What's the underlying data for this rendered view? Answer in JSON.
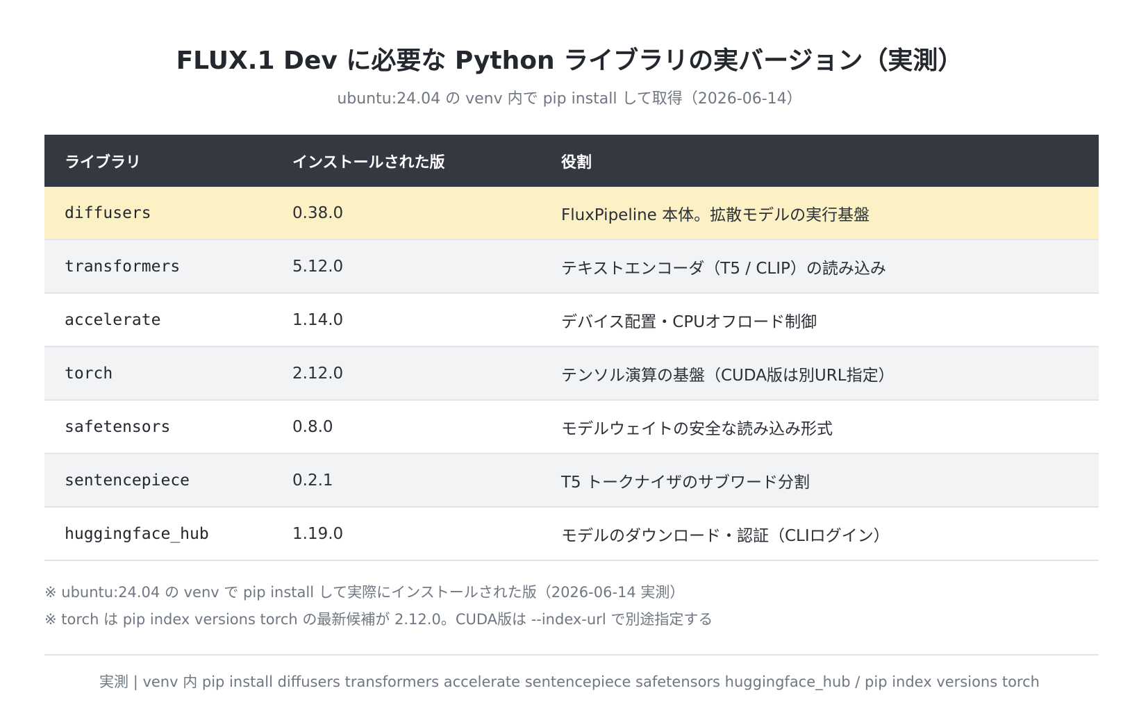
{
  "title": "FLUX.1 Dev に必要な Python ライブラリの実バージョン（実測）",
  "subtitle": "ubuntu:24.04 の venv 内で pip install して取得（2026-06-14）",
  "table": {
    "headers": [
      "ライブラリ",
      "インストールされた版",
      "役割"
    ],
    "rows": [
      {
        "library": "diffusers",
        "version": "0.38.0",
        "role": "FluxPipeline 本体。拡散モデルの実行基盤",
        "highlight": true
      },
      {
        "library": "transformers",
        "version": "5.12.0",
        "role": "テキストエンコーダ（T5 / CLIP）の読み込み"
      },
      {
        "library": "accelerate",
        "version": "1.14.0",
        "role": "デバイス配置・CPUオフロード制御"
      },
      {
        "library": "torch",
        "version": "2.12.0",
        "role": "テンソル演算の基盤（CUDA版は別URL指定）"
      },
      {
        "library": "safetensors",
        "version": "0.8.0",
        "role": "モデルウェイトの安全な読み込み形式"
      },
      {
        "library": "sentencepiece",
        "version": "0.2.1",
        "role": "T5 トークナイザのサブワード分割"
      },
      {
        "library": "huggingface_hub",
        "version": "1.19.0",
        "role": "モデルのダウンロード・認証（CLIログイン）"
      }
    ],
    "colors": {
      "header_bg": "#343840",
      "highlight_bg": "#fbf1c4",
      "stripe_bg": "#f2f3f5"
    }
  },
  "notes": [
    "※ ubuntu:24.04 の venv で pip install して実際にインストールされた版（2026-06-14 実測）",
    "※ torch は pip index versions torch の最新候補が 2.12.0。CUDA版は --index-url で別途指定する"
  ],
  "footer": "実測 | venv 内 pip install diffusers transformers accelerate sentencepiece safetensors huggingface_hub / pip index versions torch"
}
